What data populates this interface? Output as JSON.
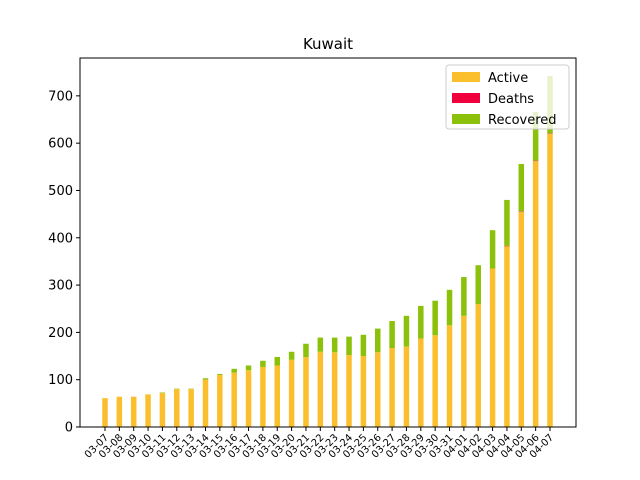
{
  "chart_data": {
    "type": "bar",
    "stacked": true,
    "title": "Kuwait",
    "xlabel": "",
    "ylabel": "",
    "ylim": [
      0,
      780
    ],
    "yticks": [
      0,
      100,
      200,
      300,
      400,
      500,
      600,
      700
    ],
    "grid": false,
    "legend_position": "top-right",
    "categories": [
      "03-07",
      "03-08",
      "03-09",
      "03-10",
      "03-11",
      "03-12",
      "03-13",
      "03-14",
      "03-15",
      "03-16",
      "03-17",
      "03-18",
      "03-19",
      "03-20",
      "03-21",
      "03-22",
      "03-23",
      "03-24",
      "03-25",
      "03-26",
      "03-27",
      "03-28",
      "03-29",
      "03-30",
      "03-31",
      "04-01",
      "04-02",
      "04-03",
      "04-04",
      "04-05",
      "04-06",
      "04-07"
    ],
    "series": [
      {
        "name": "Active",
        "color": "#fbbf2e",
        "values": [
          61,
          64,
          64,
          69,
          72,
          80,
          80,
          100,
          110,
          115,
          120,
          127,
          130,
          142,
          148,
          159,
          158,
          152,
          150,
          158,
          167,
          170,
          187,
          194,
          215,
          235,
          260,
          335,
          382,
          455,
          562,
          620
        ]
      },
      {
        "name": "Deaths",
        "color": "#f0003c",
        "values": [
          0,
          0,
          0,
          0,
          0,
          0,
          0,
          0,
          0,
          0,
          0,
          0,
          0,
          0,
          0,
          0,
          0,
          0,
          0,
          0,
          0,
          0,
          0,
          0,
          0,
          0,
          0,
          0,
          1,
          1,
          1,
          1
        ]
      },
      {
        "name": "Recovered",
        "color": "#8bc10a",
        "values": [
          0,
          0,
          0,
          0,
          1,
          1,
          1,
          3,
          2,
          8,
          10,
          13,
          18,
          17,
          28,
          30,
          31,
          39,
          45,
          50,
          57,
          65,
          69,
          73,
          75,
          82,
          82,
          81,
          97,
          100,
          103,
          121
        ]
      }
    ]
  }
}
